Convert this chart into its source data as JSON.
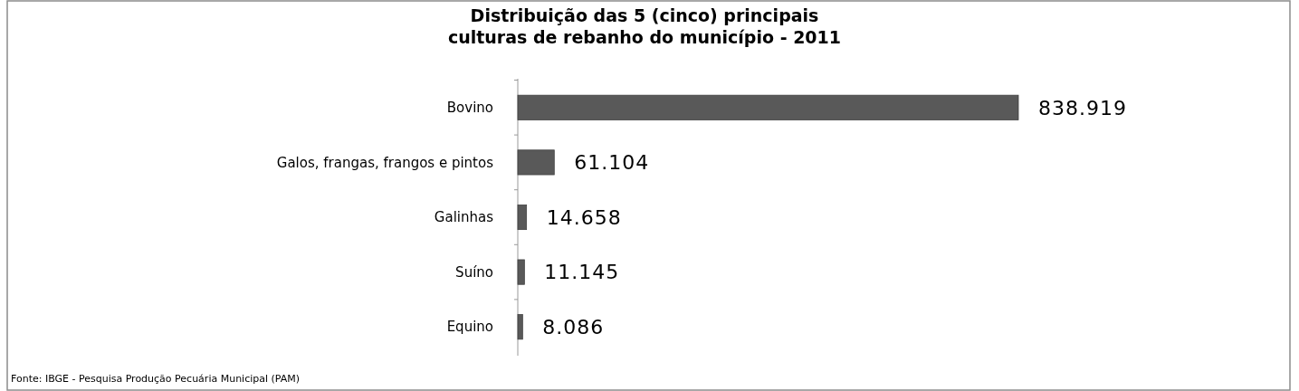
{
  "chart_data": {
    "type": "bar",
    "orientation": "horizontal",
    "title": "Distribuição das 5 (cinco) principais\nculturas de rebanho do município - 2011",
    "categories": [
      "Bovino",
      "Galos, frangas, frangos e pintos",
      "Galinhas",
      "Suíno",
      "Equino"
    ],
    "values": [
      838919,
      61104,
      14658,
      11145,
      8086
    ],
    "value_labels": [
      "838.919",
      "61.104",
      "14.658",
      "11.145",
      "8.086"
    ],
    "color": "#595959",
    "annotations": [
      "Fonte: IBGE - Pesquisa Produção Pecuária Municipal (PAM)"
    ]
  }
}
